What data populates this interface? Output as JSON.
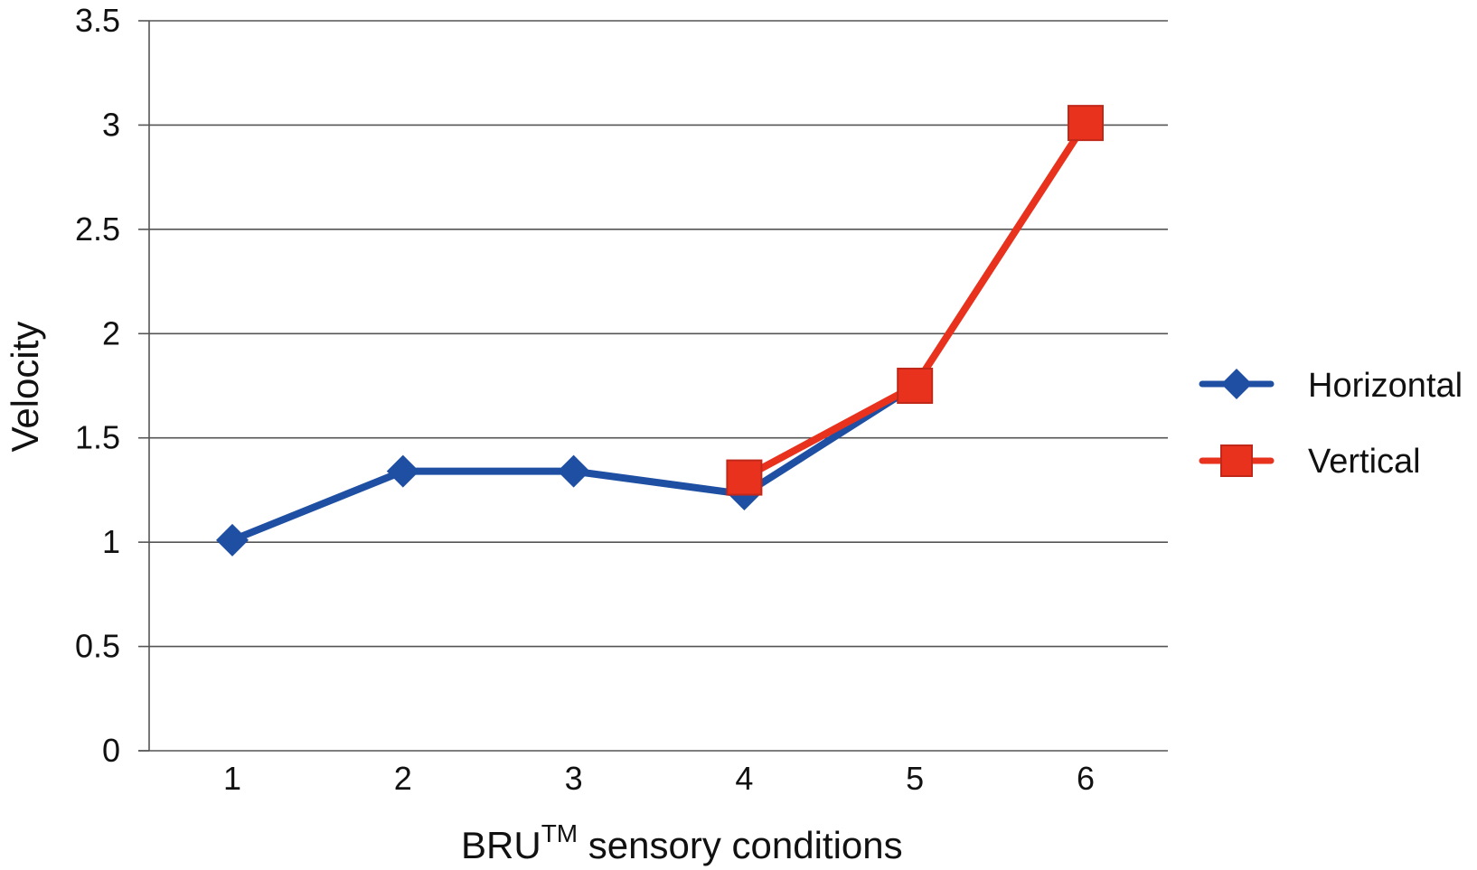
{
  "chart_data": {
    "type": "line",
    "xlabel_main": "BRU",
    "xlabel_sup": "TM",
    "xlabel_rest": " sensory conditions",
    "ylabel": "Velocity",
    "x": [
      1,
      2,
      3,
      4,
      5,
      6
    ],
    "x_tick_labels": [
      "1",
      "2",
      "3",
      "4",
      "5",
      "6"
    ],
    "ylim": [
      0,
      3.5
    ],
    "y_ticks": [
      0,
      0.5,
      1,
      1.5,
      2,
      2.5,
      3,
      3.5
    ],
    "y_tick_labels": [
      "0",
      "0.5",
      "1",
      "1.5",
      "2",
      "2.5",
      "3",
      "3.5"
    ],
    "grid": "horizontal",
    "legend_position": "right",
    "series": [
      {
        "name": "Horizontal",
        "marker": "diamond",
        "color": "#1f4fa3",
        "x": [
          1,
          2,
          3,
          4,
          5
        ],
        "values": [
          1.01,
          1.34,
          1.34,
          1.23,
          1.75
        ]
      },
      {
        "name": "Vertical",
        "marker": "square",
        "color": "#e8321e",
        "x": [
          4,
          5,
          6
        ],
        "values": [
          1.31,
          1.75,
          3.01
        ]
      }
    ]
  }
}
